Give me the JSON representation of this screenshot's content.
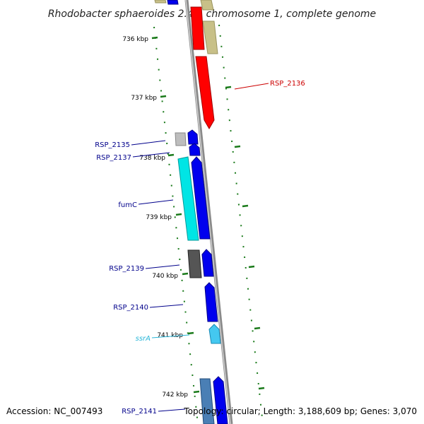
{
  "title": "Rhodobacter sphaeroides 2.4.1 chromosome 1, complete genome",
  "footer": {
    "accession": "Accession: NC_007493",
    "topology": "Topology: circular; Length: 3,188,609 bp; Genes: 3,070"
  },
  "ticks": [
    "736 kbp",
    "737 kbp",
    "738 kbp",
    "739 kbp",
    "740 kbp",
    "741 kbp",
    "742 kbp"
  ],
  "genes": [
    {
      "id": "RSP_2136",
      "label": "RSP_2136",
      "color": "#cc0000"
    },
    {
      "id": "RSP_2135",
      "label": "RSP_2135",
      "color": "#00008b"
    },
    {
      "id": "RSP_2137",
      "label": "RSP_2137",
      "color": "#00008b"
    },
    {
      "id": "fumC",
      "label": "fumC",
      "color": "#00008b"
    },
    {
      "id": "RSP_2139",
      "label": "RSP_2139",
      "color": "#00008b"
    },
    {
      "id": "RSP_2140",
      "label": "RSP_2140",
      "color": "#00008b"
    },
    {
      "id": "ssrA",
      "label": "ssrA",
      "color": "#29b6d8",
      "italic": true
    },
    {
      "id": "RSP_2141",
      "label": "RSP_2141",
      "color": "#00008b"
    }
  ],
  "colors": {
    "backbone": "#8a8a8a",
    "ticks": "#1a7a1a",
    "red_gene": "#ff0000",
    "blue_gene": "#0000ee",
    "cyan_gene": "#00e5e5",
    "khaki_gene": "#c8c088",
    "grey_gene": "#bdbdbd",
    "darkgrey_gene": "#555555",
    "light_blue_gene": "#44c8f0",
    "steel_blue_gene": "#4a7fb5"
  }
}
